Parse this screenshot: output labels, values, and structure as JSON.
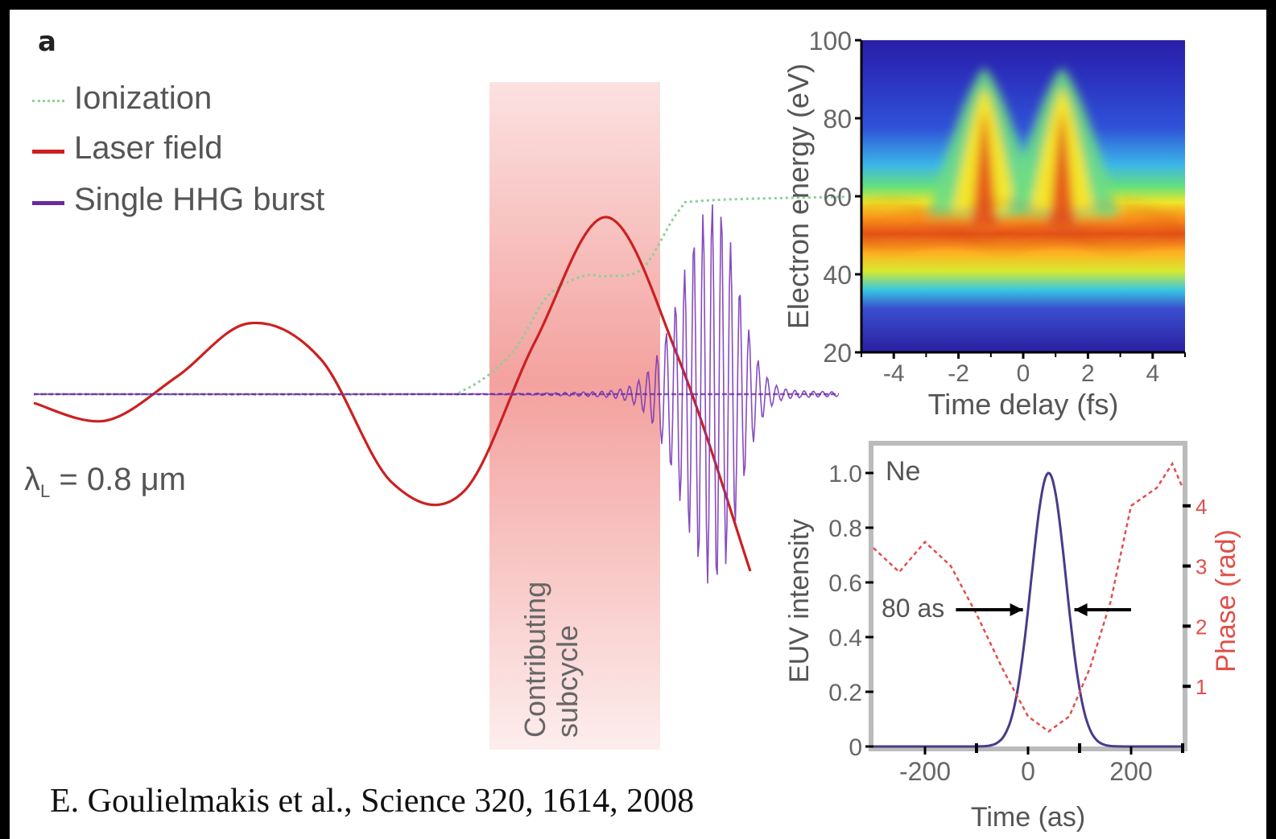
{
  "panel_letter": "a",
  "legend": [
    {
      "name": "Ionization",
      "color": "#8fcf9a",
      "style": "dotted"
    },
    {
      "name": "Laser field",
      "color": "#cc2020",
      "style": "solid"
    },
    {
      "name": "Single HHG burst",
      "color": "#6a2aa0",
      "style": "solid"
    }
  ],
  "lambda_prefix": "λ",
  "lambda_sub": "L",
  "lambda_value": "= 0.8 μm",
  "subcycle_label": [
    "Contributing",
    "subcycle"
  ],
  "citation": "E. Goulielmakis et al., Science 320, 1614, 2008",
  "colors": {
    "shade": "#f08a86",
    "laser": "#cc2020",
    "ionization": "#8fcf9a",
    "hhg": "#6a2aa0",
    "phase": "#e0504a",
    "intensity": "#4b3a8a"
  },
  "chart_data": [
    {
      "type": "line",
      "id": "main-waveform",
      "series": [
        {
          "name": "Ionization",
          "note_style": "dotted",
          "x": [
            -1.8,
            -0.2,
            0.0,
            0.2,
            0.35,
            0.5,
            0.6,
            0.75,
            0.9,
            1.0,
            1.6
          ],
          "y": [
            0.0,
            0.0,
            0.02,
            0.2,
            0.48,
            0.58,
            0.58,
            0.62,
            0.9,
            0.95,
            0.97
          ]
        },
        {
          "name": "Laser field",
          "x": [
            -1.8,
            -1.5,
            -1.2,
            -0.9,
            -0.6,
            -0.3,
            0.0,
            0.3,
            0.6,
            0.9,
            1.2
          ],
          "y": [
            -0.05,
            -0.15,
            0.1,
            0.4,
            0.2,
            -0.5,
            -0.55,
            0.3,
            1.0,
            0.2,
            -1.0
          ]
        },
        {
          "name": "Single HHG burst",
          "peak_x": 1.05,
          "peak_amplitude": 1.0,
          "width": 0.12
        }
      ]
    },
    {
      "type": "heatmap",
      "id": "streaking-spectrogram",
      "xlabel": "Time delay (fs)",
      "ylabel": "Electron energy (eV)",
      "xlim": [
        -5,
        5
      ],
      "ylim": [
        20,
        100
      ],
      "xticks": [
        "-4",
        "-2",
        "0",
        "2",
        "4"
      ],
      "yticks": [
        "20",
        "40",
        "60",
        "80",
        "100"
      ],
      "ridge_center_eV": 52,
      "peaks": [
        {
          "x": -1.2,
          "energy": 80
        },
        {
          "x": 1.2,
          "energy": 80
        }
      ]
    },
    {
      "type": "line",
      "id": "pulse-reconstruction",
      "label": "Ne",
      "xlabel": "Time (as)",
      "ylabel": "EUV intensity",
      "y2label": "Phase (rad)",
      "xlim": [
        -300,
        300
      ],
      "ylim": [
        0,
        1.1
      ],
      "y2lim": [
        0,
        5
      ],
      "xticks": [
        "-200",
        "0",
        "200"
      ],
      "yticks": [
        "0",
        "0.2",
        "0.4",
        "0.6",
        "0.8",
        "1.0"
      ],
      "y2ticks": [
        "1",
        "2",
        "3",
        "4"
      ],
      "annotation": "80 as",
      "series": [
        {
          "name": "EUV intensity",
          "center": 40,
          "fwhm": 80,
          "peak": 1.0
        },
        {
          "name": "Phase",
          "x": [
            -300,
            -250,
            -200,
            -150,
            -100,
            -50,
            0,
            40,
            80,
            120,
            160,
            200,
            250,
            280,
            300
          ],
          "y": [
            3.3,
            2.9,
            3.4,
            3.0,
            2.2,
            1.3,
            0.5,
            0.25,
            0.5,
            1.3,
            2.4,
            4.0,
            4.3,
            4.7,
            4.3
          ]
        }
      ]
    }
  ]
}
